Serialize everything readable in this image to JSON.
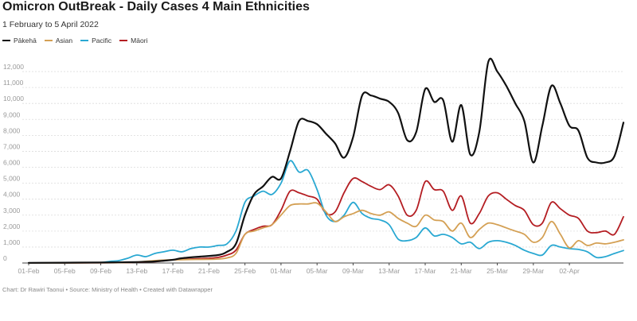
{
  "title": "Omicron OutBreak - Daily Cases 4 Main Ethnicities",
  "subtitle": "1 February to 5 April 2022",
  "footer": "Chart: Dr Rawiri Taonui • Source: Ministry of Health • Created with Datawrapper",
  "chart_data": {
    "type": "line",
    "x_labels": [
      "01-Feb",
      "05-Feb",
      "09-Feb",
      "13-Feb",
      "17-Feb",
      "21-Feb",
      "25-Feb",
      "01-Mar",
      "05-Mar",
      "09-Mar",
      "13-Mar",
      "17-Mar",
      "21-Mar",
      "25-Mar",
      "29-Mar",
      "02-Apr"
    ],
    "x_start": "2022-02-01",
    "x_end": "2022-04-05",
    "y_ticks": [
      "0",
      "1,000",
      "2,000",
      "3,000",
      "4,000",
      "5,000",
      "6,000",
      "7,000",
      "8,000",
      "9,000",
      "10,000",
      "11,000",
      "12,000"
    ],
    "ylim": [
      0,
      12500
    ],
    "grid": true,
    "legend_position": "top-left",
    "series": [
      {
        "name": "Pākehā",
        "color": "#111111",
        "values": [
          [
            0,
            10
          ],
          [
            4,
            20
          ],
          [
            8,
            30
          ],
          [
            10,
            40
          ],
          [
            12,
            60
          ],
          [
            14,
            100
          ],
          [
            16,
            200
          ],
          [
            17,
            300
          ],
          [
            19,
            400
          ],
          [
            21,
            500
          ],
          [
            22,
            700
          ],
          [
            23,
            1200
          ],
          [
            24,
            3000
          ],
          [
            25,
            4300
          ],
          [
            26,
            4800
          ],
          [
            27,
            5400
          ],
          [
            28,
            5300
          ],
          [
            29,
            7000
          ],
          [
            30,
            8900
          ],
          [
            31,
            8900
          ],
          [
            32,
            8700
          ],
          [
            33,
            8100
          ],
          [
            34,
            7500
          ],
          [
            35,
            6600
          ],
          [
            36,
            7900
          ],
          [
            37,
            10500
          ],
          [
            38,
            10500
          ],
          [
            39,
            10300
          ],
          [
            40,
            10100
          ],
          [
            41,
            9400
          ],
          [
            42,
            7700
          ],
          [
            43,
            8200
          ],
          [
            44,
            10900
          ],
          [
            45,
            10100
          ],
          [
            46,
            10200
          ],
          [
            47,
            7600
          ],
          [
            48,
            9900
          ],
          [
            49,
            6800
          ],
          [
            50,
            8200
          ],
          [
            51,
            12600
          ],
          [
            52,
            12000
          ],
          [
            53,
            11100
          ],
          [
            54,
            10000
          ],
          [
            55,
            8900
          ],
          [
            56,
            6300
          ],
          [
            57,
            8600
          ],
          [
            58,
            11100
          ],
          [
            59,
            10000
          ],
          [
            60,
            8600
          ],
          [
            61,
            8300
          ],
          [
            62,
            6600
          ],
          [
            63,
            6300
          ],
          [
            64,
            6300
          ],
          [
            65,
            6700
          ],
          [
            66,
            8800
          ]
        ]
      },
      {
        "name": "Asian",
        "color": "#d4a054",
        "values": [
          [
            0,
            5
          ],
          [
            5,
            10
          ],
          [
            10,
            20
          ],
          [
            12,
            60
          ],
          [
            14,
            150
          ],
          [
            16,
            200
          ],
          [
            18,
            220
          ],
          [
            20,
            230
          ],
          [
            21,
            250
          ],
          [
            22,
            320
          ],
          [
            23,
            600
          ],
          [
            24,
            1800
          ],
          [
            25,
            2000
          ],
          [
            26,
            2200
          ],
          [
            27,
            2400
          ],
          [
            28,
            3000
          ],
          [
            29,
            3600
          ],
          [
            30,
            3700
          ],
          [
            31,
            3700
          ],
          [
            32,
            3750
          ],
          [
            33,
            3200
          ],
          [
            34,
            2600
          ],
          [
            35,
            2900
          ],
          [
            36,
            3100
          ],
          [
            37,
            3300
          ],
          [
            38,
            3100
          ],
          [
            39,
            3000
          ],
          [
            40,
            3200
          ],
          [
            41,
            2800
          ],
          [
            42,
            2500
          ],
          [
            43,
            2300
          ],
          [
            44,
            3000
          ],
          [
            45,
            2700
          ],
          [
            46,
            2600
          ],
          [
            47,
            2000
          ],
          [
            48,
            2500
          ],
          [
            49,
            1600
          ],
          [
            50,
            2100
          ],
          [
            51,
            2500
          ],
          [
            52,
            2400
          ],
          [
            53,
            2200
          ],
          [
            54,
            2000
          ],
          [
            55,
            1800
          ],
          [
            56,
            1300
          ],
          [
            57,
            1600
          ],
          [
            58,
            2600
          ],
          [
            59,
            1800
          ],
          [
            60,
            950
          ],
          [
            61,
            1400
          ],
          [
            62,
            1100
          ],
          [
            63,
            1250
          ],
          [
            64,
            1200
          ],
          [
            65,
            1300
          ],
          [
            66,
            1450
          ]
        ]
      },
      {
        "name": "Pacific",
        "color": "#29a8d2",
        "values": [
          [
            0,
            5
          ],
          [
            3,
            10
          ],
          [
            6,
            20
          ],
          [
            8,
            30
          ],
          [
            9,
            100
          ],
          [
            10,
            150
          ],
          [
            11,
            300
          ],
          [
            12,
            500
          ],
          [
            13,
            400
          ],
          [
            14,
            600
          ],
          [
            15,
            700
          ],
          [
            16,
            800
          ],
          [
            17,
            700
          ],
          [
            18,
            900
          ],
          [
            19,
            1000
          ],
          [
            20,
            1000
          ],
          [
            21,
            1100
          ],
          [
            22,
            1200
          ],
          [
            23,
            2000
          ],
          [
            24,
            3800
          ],
          [
            25,
            4200
          ],
          [
            26,
            4500
          ],
          [
            27,
            4300
          ],
          [
            28,
            5000
          ],
          [
            29,
            6400
          ],
          [
            30,
            5700
          ],
          [
            31,
            5800
          ],
          [
            32,
            4600
          ],
          [
            33,
            3000
          ],
          [
            34,
            2600
          ],
          [
            35,
            3000
          ],
          [
            36,
            3800
          ],
          [
            37,
            3100
          ],
          [
            38,
            2800
          ],
          [
            39,
            2700
          ],
          [
            40,
            2400
          ],
          [
            41,
            1500
          ],
          [
            42,
            1400
          ],
          [
            43,
            1600
          ],
          [
            44,
            2200
          ],
          [
            45,
            1700
          ],
          [
            46,
            1800
          ],
          [
            47,
            1600
          ],
          [
            48,
            1200
          ],
          [
            49,
            1300
          ],
          [
            50,
            900
          ],
          [
            51,
            1300
          ],
          [
            52,
            1400
          ],
          [
            53,
            1300
          ],
          [
            54,
            1100
          ],
          [
            55,
            800
          ],
          [
            56,
            600
          ],
          [
            57,
            500
          ],
          [
            58,
            1100
          ],
          [
            59,
            1000
          ],
          [
            60,
            900
          ],
          [
            61,
            850
          ],
          [
            62,
            700
          ],
          [
            63,
            350
          ],
          [
            64,
            400
          ],
          [
            65,
            600
          ],
          [
            66,
            780
          ]
        ]
      },
      {
        "name": "Māori",
        "color": "#b41d22",
        "values": [
          [
            0,
            5
          ],
          [
            5,
            10
          ],
          [
            10,
            20
          ],
          [
            12,
            50
          ],
          [
            14,
            80
          ],
          [
            16,
            200
          ],
          [
            18,
            250
          ],
          [
            20,
            300
          ],
          [
            21,
            350
          ],
          [
            22,
            500
          ],
          [
            23,
            800
          ],
          [
            24,
            1800
          ],
          [
            25,
            2100
          ],
          [
            26,
            2300
          ],
          [
            27,
            2400
          ],
          [
            28,
            3300
          ],
          [
            29,
            4500
          ],
          [
            30,
            4400
          ],
          [
            31,
            4200
          ],
          [
            32,
            4000
          ],
          [
            33,
            3100
          ],
          [
            34,
            3200
          ],
          [
            35,
            4400
          ],
          [
            36,
            5300
          ],
          [
            37,
            5100
          ],
          [
            38,
            4800
          ],
          [
            39,
            4600
          ],
          [
            40,
            4900
          ],
          [
            41,
            4200
          ],
          [
            42,
            3000
          ],
          [
            43,
            3300
          ],
          [
            44,
            5100
          ],
          [
            45,
            4600
          ],
          [
            46,
            4500
          ],
          [
            47,
            3300
          ],
          [
            48,
            4200
          ],
          [
            49,
            2500
          ],
          [
            50,
            3100
          ],
          [
            51,
            4200
          ],
          [
            52,
            4400
          ],
          [
            53,
            4000
          ],
          [
            54,
            3600
          ],
          [
            55,
            3300
          ],
          [
            56,
            2400
          ],
          [
            57,
            2500
          ],
          [
            58,
            3800
          ],
          [
            59,
            3400
          ],
          [
            60,
            3000
          ],
          [
            61,
            2800
          ],
          [
            62,
            2000
          ],
          [
            63,
            1900
          ],
          [
            64,
            2000
          ],
          [
            65,
            1800
          ],
          [
            66,
            2900
          ]
        ]
      }
    ]
  }
}
